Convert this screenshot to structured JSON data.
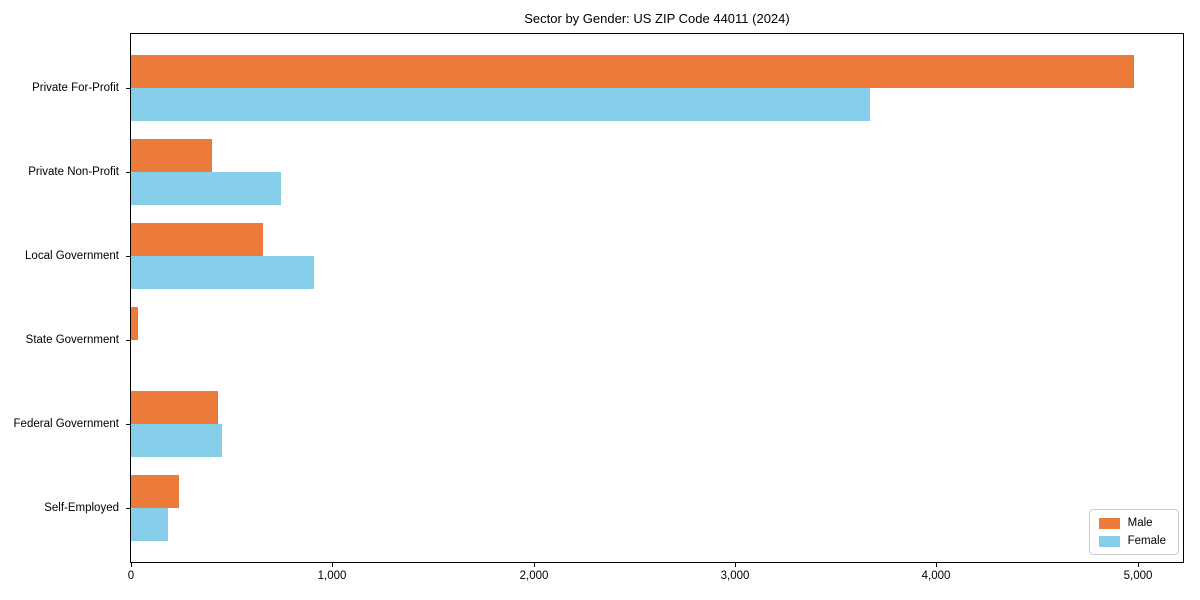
{
  "chart_data": {
    "type": "bar",
    "orientation": "horizontal",
    "title": "Sector by Gender: US ZIP Code 44011 (2024)",
    "categories": [
      "Private For-Profit",
      "Private Non-Profit",
      "Local Government",
      "State Government",
      "Federal Government",
      "Self-Employed"
    ],
    "series": [
      {
        "name": "Male",
        "color": "#EB7A3B",
        "values": [
          4980,
          400,
          655,
          36,
          430,
          240
        ]
      },
      {
        "name": "Female",
        "color": "#87CEEB",
        "values": [
          3670,
          745,
          910,
          0,
          450,
          185
        ]
      }
    ],
    "x_ticks": [
      0,
      1000,
      2000,
      3000,
      4000,
      5000
    ],
    "x_tick_labels": [
      "0",
      "1,000",
      "2,000",
      "3,000",
      "4,000",
      "5,000"
    ],
    "xlim": [
      0,
      5225
    ],
    "ylabel": "",
    "xlabel": "",
    "grid": false,
    "legend": {
      "position": "lower right"
    },
    "colors": {
      "axis": "#000000",
      "legend_border": "#cccccc",
      "background": "#ffffff"
    }
  }
}
